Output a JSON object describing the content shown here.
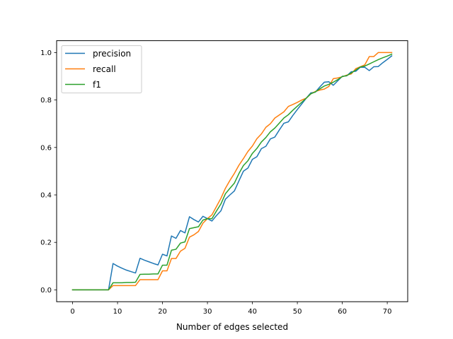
{
  "chart_data": {
    "type": "line",
    "title": "",
    "xlabel": "Number of edges selected",
    "ylabel": "",
    "xlim": [
      -3.55,
      74.55
    ],
    "ylim": [
      -0.05,
      1.05
    ],
    "xticks": [
      0,
      10,
      20,
      30,
      40,
      50,
      60,
      70
    ],
    "yticks": [
      0.0,
      0.2,
      0.4,
      0.6,
      0.8,
      1.0
    ],
    "xtick_labels": [
      "0",
      "10",
      "20",
      "30",
      "40",
      "50",
      "60",
      "70"
    ],
    "ytick_labels": [
      "0.0",
      "0.2",
      "0.4",
      "0.6",
      "0.8",
      "1.0"
    ],
    "grid": false,
    "legend_position": "upper-left",
    "series": [
      {
        "name": "precision",
        "color": "#1f77b4",
        "x": [
          0,
          8,
          9,
          10,
          11,
          12,
          13,
          14,
          15,
          16,
          17,
          18,
          19,
          20,
          21,
          22,
          23,
          24,
          25,
          26,
          27,
          28,
          29,
          30,
          31,
          32,
          33,
          34,
          35,
          36,
          37,
          38,
          39,
          40,
          41,
          42,
          43,
          44,
          45,
          46,
          47,
          48,
          49,
          50,
          51,
          52,
          53,
          54,
          55,
          56,
          57,
          58,
          59,
          60,
          61,
          62,
          63,
          64,
          65,
          66,
          67,
          68,
          69,
          70,
          71
        ],
        "y": [
          0.0,
          0.0,
          0.111,
          0.1,
          0.091,
          0.083,
          0.077,
          0.071,
          0.133,
          0.125,
          0.118,
          0.111,
          0.105,
          0.15,
          0.143,
          0.227,
          0.217,
          0.25,
          0.24,
          0.308,
          0.296,
          0.286,
          0.31,
          0.3,
          0.29,
          0.313,
          0.333,
          0.382,
          0.4,
          0.417,
          0.459,
          0.5,
          0.513,
          0.55,
          0.561,
          0.595,
          0.605,
          0.636,
          0.644,
          0.674,
          0.702,
          0.708,
          0.735,
          0.76,
          0.784,
          0.808,
          0.83,
          0.833,
          0.855,
          0.875,
          0.877,
          0.862,
          0.881,
          0.9,
          0.902,
          0.919,
          0.921,
          0.938,
          0.938,
          0.924,
          0.94,
          0.941,
          0.957,
          0.971,
          0.986
        ]
      },
      {
        "name": "recall",
        "color": "#ff7f0e",
        "x": [
          0,
          8,
          9,
          10,
          11,
          12,
          13,
          14,
          15,
          16,
          17,
          18,
          19,
          20,
          21,
          22,
          23,
          24,
          25,
          26,
          27,
          28,
          29,
          30,
          31,
          32,
          33,
          34,
          35,
          36,
          37,
          38,
          39,
          40,
          41,
          42,
          43,
          44,
          45,
          46,
          47,
          48,
          49,
          50,
          51,
          52,
          53,
          54,
          55,
          56,
          57,
          58,
          59,
          60,
          61,
          62,
          63,
          64,
          65,
          66,
          67,
          68,
          69,
          70,
          71
        ],
        "y": [
          0.0,
          0.0,
          0.018,
          0.018,
          0.018,
          0.018,
          0.018,
          0.018,
          0.043,
          0.043,
          0.043,
          0.043,
          0.043,
          0.08,
          0.08,
          0.132,
          0.132,
          0.163,
          0.175,
          0.222,
          0.232,
          0.246,
          0.281,
          0.3,
          0.316,
          0.351,
          0.386,
          0.428,
          0.461,
          0.491,
          0.525,
          0.553,
          0.583,
          0.606,
          0.637,
          0.657,
          0.685,
          0.7,
          0.724,
          0.737,
          0.75,
          0.773,
          0.781,
          0.79,
          0.8,
          0.808,
          0.826,
          0.836,
          0.842,
          0.846,
          0.857,
          0.89,
          0.893,
          0.898,
          0.905,
          0.91,
          0.932,
          0.94,
          0.948,
          0.983,
          0.983,
          1.0,
          1.0,
          1.0,
          1.0
        ]
      },
      {
        "name": "f1",
        "color": "#2ca02c",
        "x": [
          0,
          8,
          9,
          10,
          11,
          12,
          13,
          14,
          15,
          16,
          17,
          18,
          19,
          20,
          21,
          22,
          23,
          24,
          25,
          26,
          27,
          28,
          29,
          30,
          31,
          32,
          33,
          34,
          35,
          36,
          37,
          38,
          39,
          40,
          41,
          42,
          43,
          44,
          45,
          46,
          47,
          48,
          49,
          50,
          51,
          52,
          53,
          54,
          55,
          56,
          57,
          58,
          59,
          60,
          61,
          62,
          63,
          64,
          65,
          66,
          67,
          68,
          69,
          70,
          71
        ],
        "y": [
          0.0,
          0.0,
          0.03,
          0.03,
          0.03,
          0.031,
          0.031,
          0.032,
          0.065,
          0.066,
          0.066,
          0.067,
          0.067,
          0.104,
          0.104,
          0.167,
          0.171,
          0.197,
          0.202,
          0.258,
          0.262,
          0.266,
          0.294,
          0.3,
          0.3,
          0.332,
          0.362,
          0.405,
          0.428,
          0.45,
          0.49,
          0.524,
          0.544,
          0.575,
          0.596,
          0.623,
          0.642,
          0.666,
          0.682,
          0.703,
          0.724,
          0.738,
          0.757,
          0.774,
          0.791,
          0.808,
          0.826,
          0.834,
          0.847,
          0.859,
          0.866,
          0.875,
          0.886,
          0.899,
          0.903,
          0.914,
          0.926,
          0.939,
          0.943,
          0.952,
          0.961,
          0.97,
          0.978,
          0.985,
          0.993
        ]
      }
    ]
  }
}
